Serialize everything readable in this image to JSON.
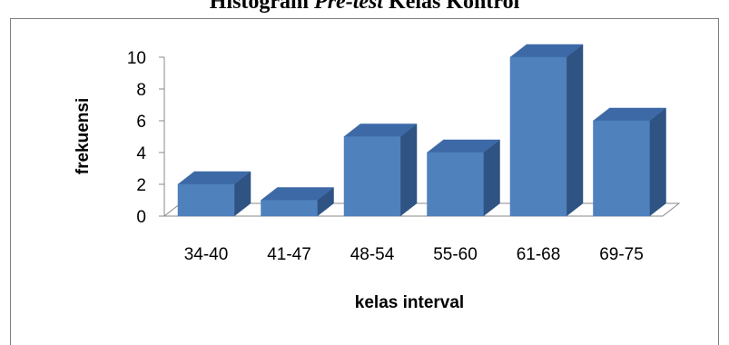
{
  "chart_data": {
    "type": "bar",
    "title_prefix": "Histogram ",
    "title_italic": "Pre-test",
    "title_suffix": " Kelas Kontrol",
    "xlabel": "kelas interval",
    "ylabel": "frekuensi",
    "categories": [
      "34-40",
      "41-47",
      "48-54",
      "55-60",
      "61-68",
      "69-75"
    ],
    "values": [
      2,
      1,
      5,
      4,
      10,
      6
    ],
    "ylim": [
      0,
      10
    ],
    "yticks": [
      "0",
      "2",
      "4",
      "6",
      "8",
      "10"
    ],
    "style": "3d-column",
    "grid": false,
    "legend": "none",
    "colors": {
      "bar_front": "#4f81bd",
      "bar_side": "#2f5382",
      "bar_top": "#3d6aa6",
      "edge": "#4a7dbb"
    }
  }
}
